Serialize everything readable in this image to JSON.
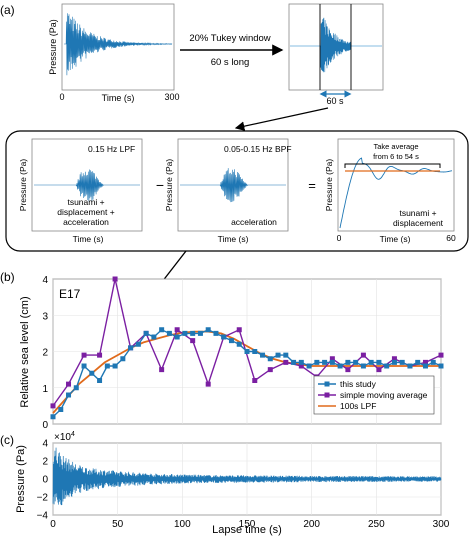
{
  "panel_a": {
    "label": "(a)",
    "top_left": {
      "ylabel": "Pressure (Pa)",
      "xlabel": "Time (s)",
      "xticks": [
        "0",
        "300"
      ]
    },
    "arrow_text": [
      "20% Tukey window",
      "60 s long"
    ],
    "window_text": "60 s",
    "lpf": {
      "title": "0.15 Hz LPF",
      "ylabel": "Pressure (Pa)",
      "xlabel": "Time (s)",
      "note": [
        "tsunami +",
        "displacement +",
        "acceleration"
      ]
    },
    "minus": "−",
    "bpf": {
      "title": "0.05-0.15 Hz BPF",
      "ylabel": "Pressure (Pa)",
      "xlabel": "Time (s)",
      "note": "acceleration"
    },
    "equals": "=",
    "result": {
      "ylabel": "Pressure (Pa)",
      "xlabel": "Time (s)",
      "xticks": [
        "0",
        "60"
      ],
      "avg_text": [
        "Take average",
        "from 6 to 54 s"
      ],
      "note": [
        "tsunami +",
        "displacement"
      ]
    }
  },
  "panel_b": {
    "label": "(b)",
    "station": "E17",
    "ylabel": "Relative sea level (cm)",
    "yticks": [
      "0",
      "1",
      "2",
      "3",
      "4"
    ],
    "legend": [
      "this study",
      "simple moving average",
      "100s LPF"
    ]
  },
  "panel_c": {
    "label": "(c)",
    "exponent": "×10",
    "exponent_power": "4",
    "ylabel": "Pressure (Pa)",
    "xlabel": "Lapse time (s)",
    "yticks": [
      "4",
      "2",
      "0",
      "−2",
      "−4"
    ],
    "xticks": [
      "0",
      "50",
      "100",
      "150",
      "200",
      "250",
      "300"
    ]
  },
  "colors": {
    "this_study": "#1f77b4",
    "moving_average": "#7b1fa2",
    "lpf": "#e06a1b",
    "pressure": "#1f77b4",
    "bracket": "#000000"
  },
  "chart_data": [
    {
      "type": "line",
      "panel": "b",
      "xlim": [
        0,
        300
      ],
      "ylim": [
        0,
        4
      ],
      "grid": true,
      "legend_position": "bottom-right",
      "series": [
        {
          "name": "this study",
          "x": [
            0,
            6,
            12,
            18,
            24,
            30,
            36,
            42,
            48,
            54,
            60,
            66,
            72,
            78,
            84,
            90,
            96,
            102,
            108,
            114,
            120,
            126,
            132,
            138,
            144,
            150,
            156,
            162,
            168,
            174,
            180,
            186,
            192,
            198,
            204,
            210,
            216,
            222,
            228,
            234,
            240,
            246,
            252,
            258,
            264,
            270,
            276,
            282,
            288,
            294,
            300
          ],
          "y": [
            0.2,
            0.4,
            0.8,
            1.0,
            1.6,
            1.4,
            1.2,
            1.6,
            1.6,
            1.8,
            2.1,
            2.2,
            2.5,
            2.4,
            2.6,
            2.5,
            2.4,
            2.5,
            2.5,
            2.5,
            2.6,
            2.5,
            2.4,
            2.3,
            2.2,
            2.0,
            2.0,
            1.9,
            1.8,
            1.9,
            1.9,
            1.7,
            1.7,
            1.6,
            1.7,
            1.7,
            1.7,
            1.6,
            1.7,
            1.7,
            1.6,
            1.7,
            1.7,
            1.6,
            1.7,
            1.7,
            1.6,
            1.7,
            1.6,
            1.7,
            1.6
          ]
        },
        {
          "name": "simple moving average",
          "x": [
            0,
            12,
            24,
            36,
            48,
            60,
            72,
            84,
            96,
            108,
            120,
            132,
            144,
            156,
            168,
            180,
            192,
            204,
            216,
            228,
            240,
            252,
            264,
            276,
            288,
            300
          ],
          "y": [
            0.5,
            1.1,
            1.9,
            1.9,
            4.0,
            2.1,
            2.5,
            1.5,
            2.6,
            2.3,
            1.1,
            2.4,
            2.6,
            1.2,
            1.5,
            1.7,
            1.6,
            1.3,
            1.8,
            1.5,
            1.9,
            1.5,
            1.8,
            1.6,
            1.7,
            1.9
          ]
        },
        {
          "name": "100s LPF",
          "x": [
            0,
            10,
            20,
            30,
            40,
            50,
            60,
            70,
            80,
            90,
            100,
            110,
            120,
            130,
            140,
            150,
            160,
            170,
            180,
            190,
            200,
            220,
            240,
            260,
            280,
            300
          ],
          "y": [
            0.3,
            0.7,
            1.1,
            1.4,
            1.7,
            1.9,
            2.1,
            2.25,
            2.35,
            2.45,
            2.52,
            2.55,
            2.55,
            2.5,
            2.35,
            2.15,
            1.95,
            1.8,
            1.7,
            1.65,
            1.6,
            1.6,
            1.6,
            1.6,
            1.6,
            1.6
          ]
        }
      ]
    },
    {
      "type": "line",
      "panel": "c",
      "xlim": [
        0,
        300
      ],
      "ylim": [
        -4,
        4
      ],
      "grid": true,
      "envelope": {
        "x": [
          0,
          5,
          10,
          20,
          30,
          50,
          80,
          120,
          200,
          300
        ],
        "amplitude": [
          4.5,
          3.2,
          2.4,
          1.6,
          1.2,
          0.9,
          0.6,
          0.45,
          0.35,
          0.3
        ]
      }
    }
  ]
}
